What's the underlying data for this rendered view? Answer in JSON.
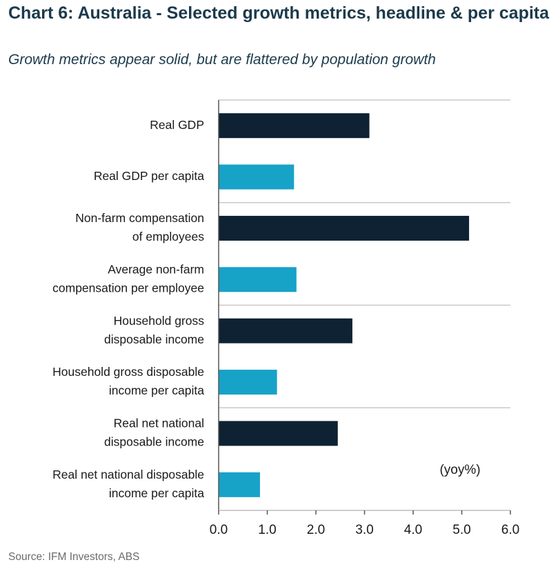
{
  "chart_data": {
    "type": "bar",
    "orientation": "horizontal",
    "title": "Chart 6: Australia - Selected growth metrics, headline & per capita",
    "subtitle": "Growth metrics appear solid, but are flattered by population growth",
    "unit_note": "(yoy%)",
    "categories": [
      [
        "Real GDP"
      ],
      [
        "Real GDP per capita"
      ],
      [
        "Non-farm compensation",
        "of employees"
      ],
      [
        "Average non-farm",
        "compensation per employee"
      ],
      [
        "Household gross",
        "disposable income"
      ],
      [
        "Household gross disposable",
        "income per capita"
      ],
      [
        "Real net national",
        "disposable income"
      ],
      [
        "Real net national disposable",
        "income per capita"
      ]
    ],
    "values": [
      3.1,
      1.55,
      5.15,
      1.6,
      2.75,
      1.2,
      2.45,
      0.85
    ],
    "bar_kinds": [
      "headline",
      "per_capita",
      "headline",
      "per_capita",
      "headline",
      "per_capita",
      "headline",
      "per_capita"
    ],
    "xlim": [
      0,
      6
    ],
    "xticks": [
      "0.0",
      "1.0",
      "2.0",
      "3.0",
      "4.0",
      "5.0",
      "6.0"
    ],
    "grid": true,
    "colors": {
      "headline": "#0f2233",
      "per_capita": "#17a2c8",
      "grid": "#c8c8c8",
      "axis": "#555555"
    },
    "source": "Source: IFM Investors, ABS"
  }
}
